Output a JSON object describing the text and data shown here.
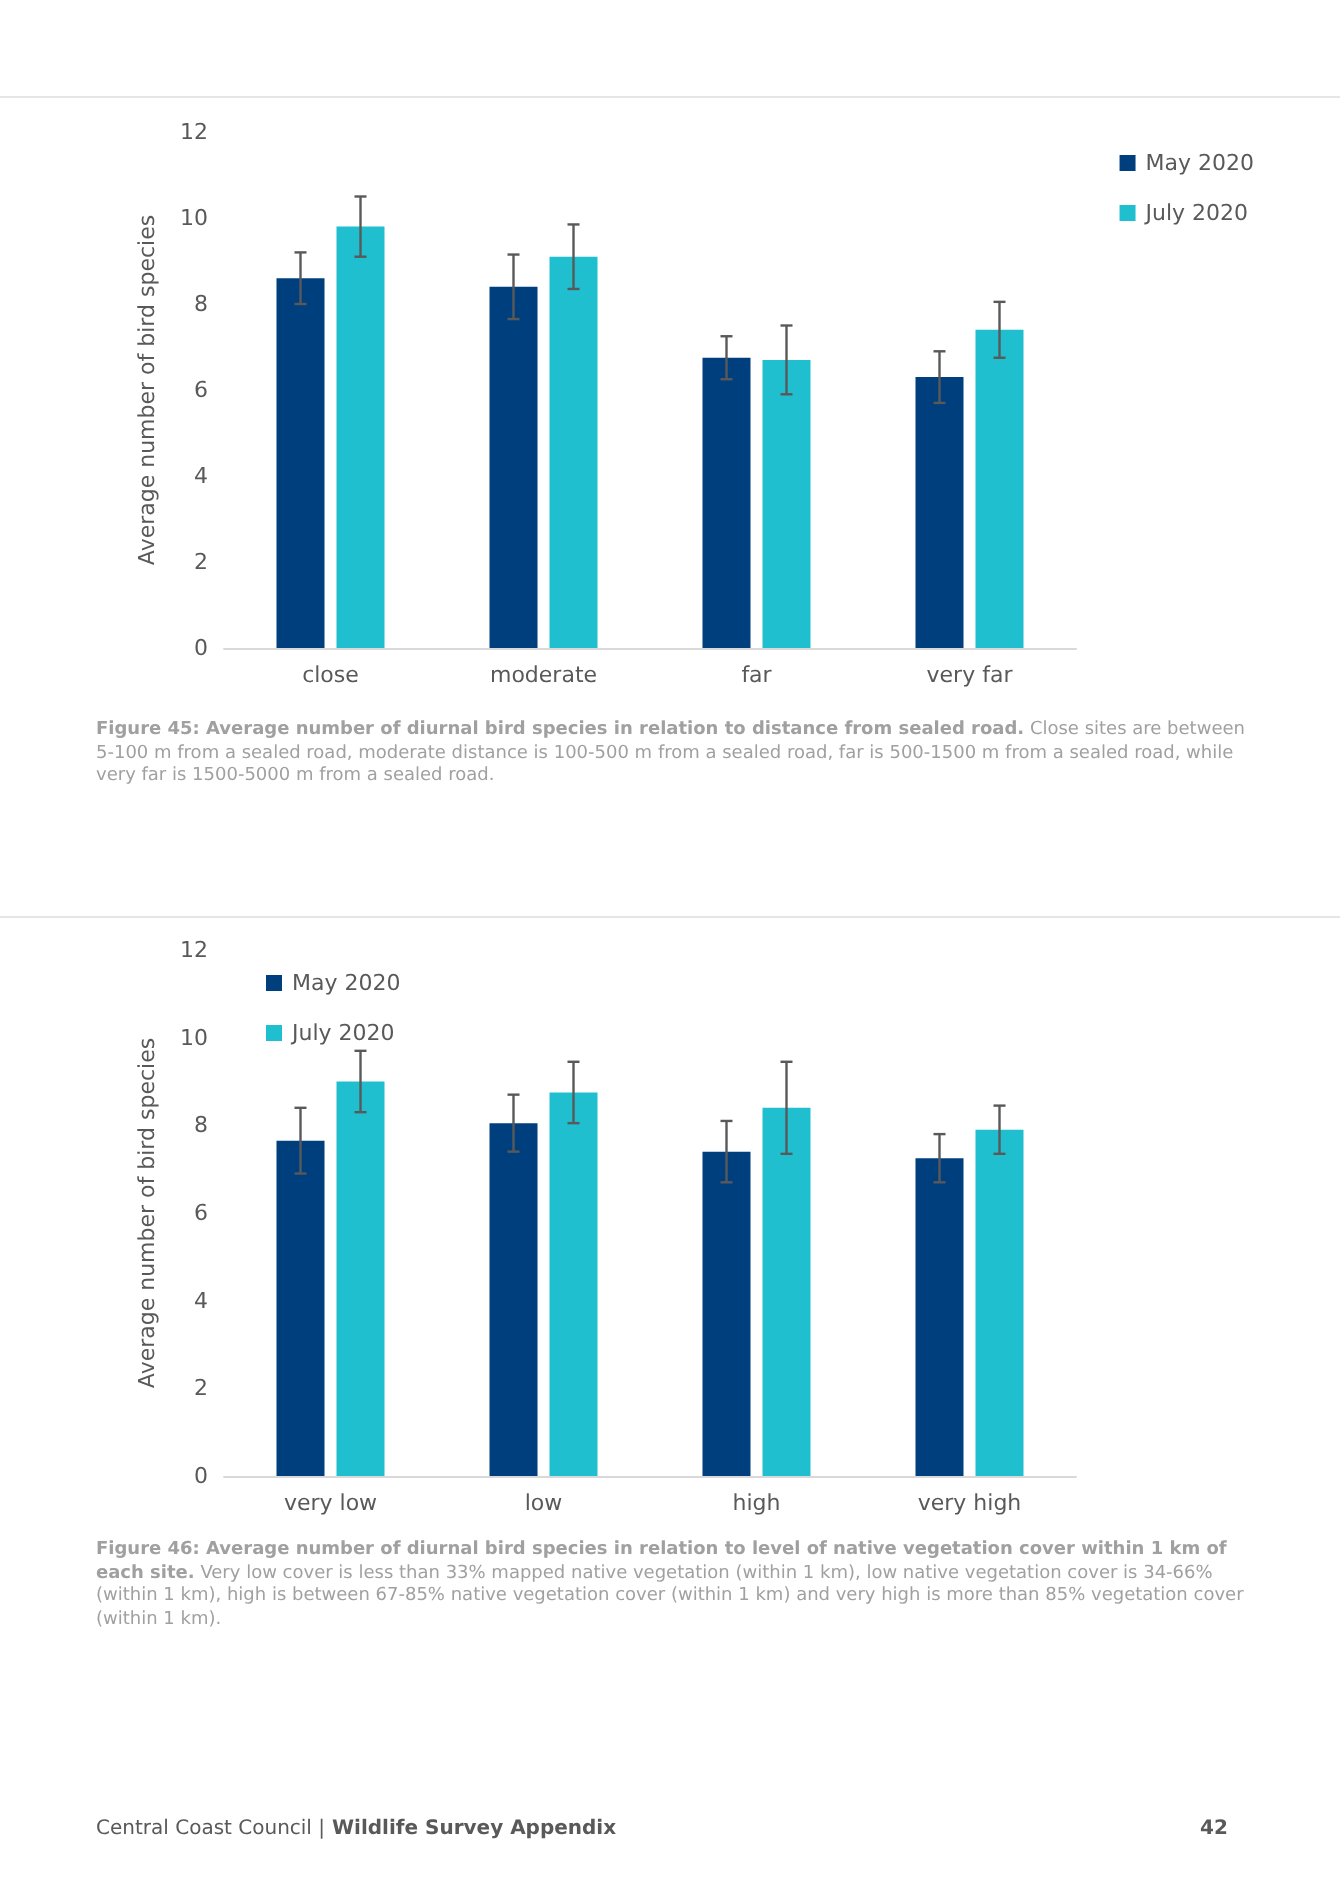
{
  "chart_data": [
    {
      "type": "bar",
      "ylabel": "Average number of bird species",
      "categories": [
        "close",
        "moderate",
        "far",
        "very far"
      ],
      "series": [
        {
          "name": "May 2020",
          "color": "#003f7d",
          "values": [
            8.6,
            8.4,
            6.75,
            6.3
          ],
          "errors": [
            0.6,
            0.75,
            0.5,
            0.6
          ]
        },
        {
          "name": "July 2020",
          "color": "#1fbfcf",
          "values": [
            9.8,
            9.1,
            6.7,
            7.4
          ],
          "errors": [
            0.7,
            0.75,
            0.8,
            0.65
          ]
        }
      ],
      "ylim": [
        0,
        12
      ],
      "yticks": [
        0,
        2,
        4,
        6,
        8,
        10,
        12
      ],
      "grid": false,
      "legend": "top right",
      "annotations": [
        "Figure 45: Average number of diurnal bird species in relation to distance from sealed road. Close sites are between 5-100 m from a sealed road, moderate distance is 100-500 m from a sealed road, far is 500-1500 m from a sealed road, while very far is 1500-5000 m from a sealed road."
      ]
    },
    {
      "type": "bar",
      "ylabel": "Average number of bird species",
      "categories": [
        "very low",
        "low",
        "high",
        "very high"
      ],
      "series": [
        {
          "name": "May 2020",
          "color": "#003f7d",
          "values": [
            7.65,
            8.05,
            7.4,
            7.25
          ],
          "errors": [
            0.75,
            0.65,
            0.7,
            0.55
          ]
        },
        {
          "name": "July 2020",
          "color": "#1fbfcf",
          "values": [
            9.0,
            8.75,
            8.4,
            7.9
          ],
          "errors": [
            0.7,
            0.7,
            1.05,
            0.55
          ]
        }
      ],
      "ylim": [
        0,
        12
      ],
      "yticks": [
        0,
        2,
        4,
        6,
        8,
        10,
        12
      ],
      "grid": false,
      "legend": "top left",
      "annotations": [
        "Figure 46: Average number of diurnal bird species in relation to level of native vegetation cover within 1 km of each site. Very low cover is less than 33% mapped native vegetation (within 1 km), low native vegetation cover is 34-66% (within 1 km), high is between 67-85% native vegetation cover (within 1 km) and very high is more than 85% vegetation cover (within 1 km).",
        "Central Coast Council | Wildlife Survey Appendix",
        "42"
      ]
    }
  ]
}
